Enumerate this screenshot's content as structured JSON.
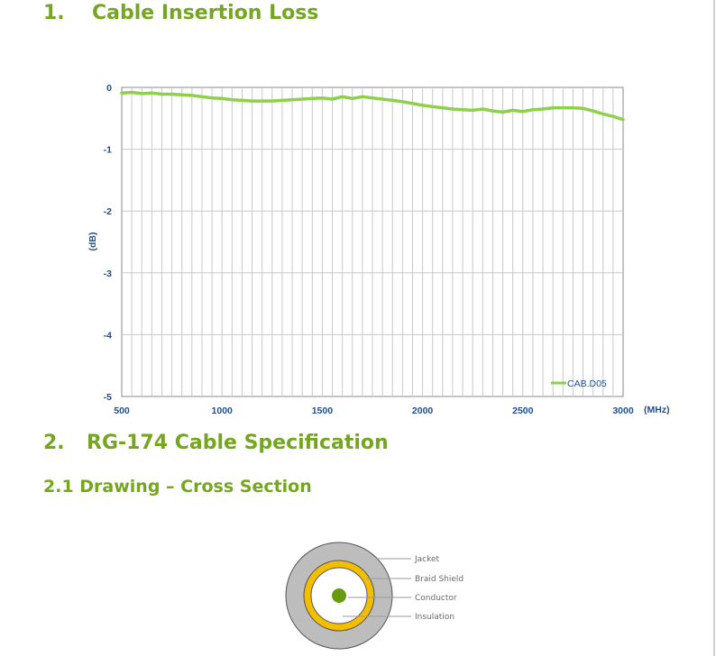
{
  "section1": {
    "number": "1.",
    "title": "Cable Insertion Loss"
  },
  "section2": {
    "number": "2.",
    "title": "RG-174 Cable Specification"
  },
  "section2_1": {
    "title": "2.1 Drawing – Cross Section"
  },
  "colors": {
    "heading": "#75a61f",
    "series": "#8ed04a",
    "axis_text": "#1f4e8c",
    "grid": "#c8c8c8",
    "jacket": "#bdbdbd",
    "braid": "#f3bd00",
    "conductor": "#6a9a12"
  },
  "chart_data": {
    "type": "line",
    "title": "",
    "xlabel": "(MHz)",
    "ylabel": "(dB)",
    "xlim": [
      500,
      3000
    ],
    "ylim": [
      -5,
      0
    ],
    "xticks": [
      500,
      1000,
      1500,
      2000,
      2500,
      3000
    ],
    "yticks": [
      0,
      -1,
      -2,
      -3,
      -4,
      -5
    ],
    "grid": true,
    "legend_position": "bottom-right",
    "series": [
      {
        "name": "CAB.D05",
        "x": [
          500,
          550,
          600,
          650,
          700,
          750,
          800,
          850,
          900,
          950,
          1000,
          1050,
          1100,
          1150,
          1200,
          1250,
          1300,
          1350,
          1400,
          1450,
          1500,
          1550,
          1600,
          1650,
          1700,
          1750,
          1800,
          1850,
          1900,
          1950,
          2000,
          2050,
          2100,
          2150,
          2200,
          2250,
          2300,
          2350,
          2400,
          2450,
          2500,
          2550,
          2600,
          2650,
          2700,
          2750,
          2800,
          2850,
          2900,
          2950,
          3000
        ],
        "values": [
          -0.09,
          -0.08,
          -0.1,
          -0.09,
          -0.11,
          -0.11,
          -0.12,
          -0.13,
          -0.15,
          -0.17,
          -0.18,
          -0.2,
          -0.21,
          -0.22,
          -0.22,
          -0.22,
          -0.21,
          -0.2,
          -0.19,
          -0.18,
          -0.17,
          -0.19,
          -0.15,
          -0.18,
          -0.15,
          -0.17,
          -0.19,
          -0.21,
          -0.23,
          -0.26,
          -0.29,
          -0.31,
          -0.33,
          -0.35,
          -0.36,
          -0.37,
          -0.35,
          -0.38,
          -0.4,
          -0.37,
          -0.39,
          -0.36,
          -0.35,
          -0.33,
          -0.33,
          -0.33,
          -0.34,
          -0.38,
          -0.43,
          -0.47,
          -0.52
        ]
      }
    ]
  },
  "cross_section": {
    "labels": {
      "jacket": "Jacket",
      "braid": "Braid Shield",
      "conductor": "Conductor",
      "insulation": "Insulation"
    }
  }
}
